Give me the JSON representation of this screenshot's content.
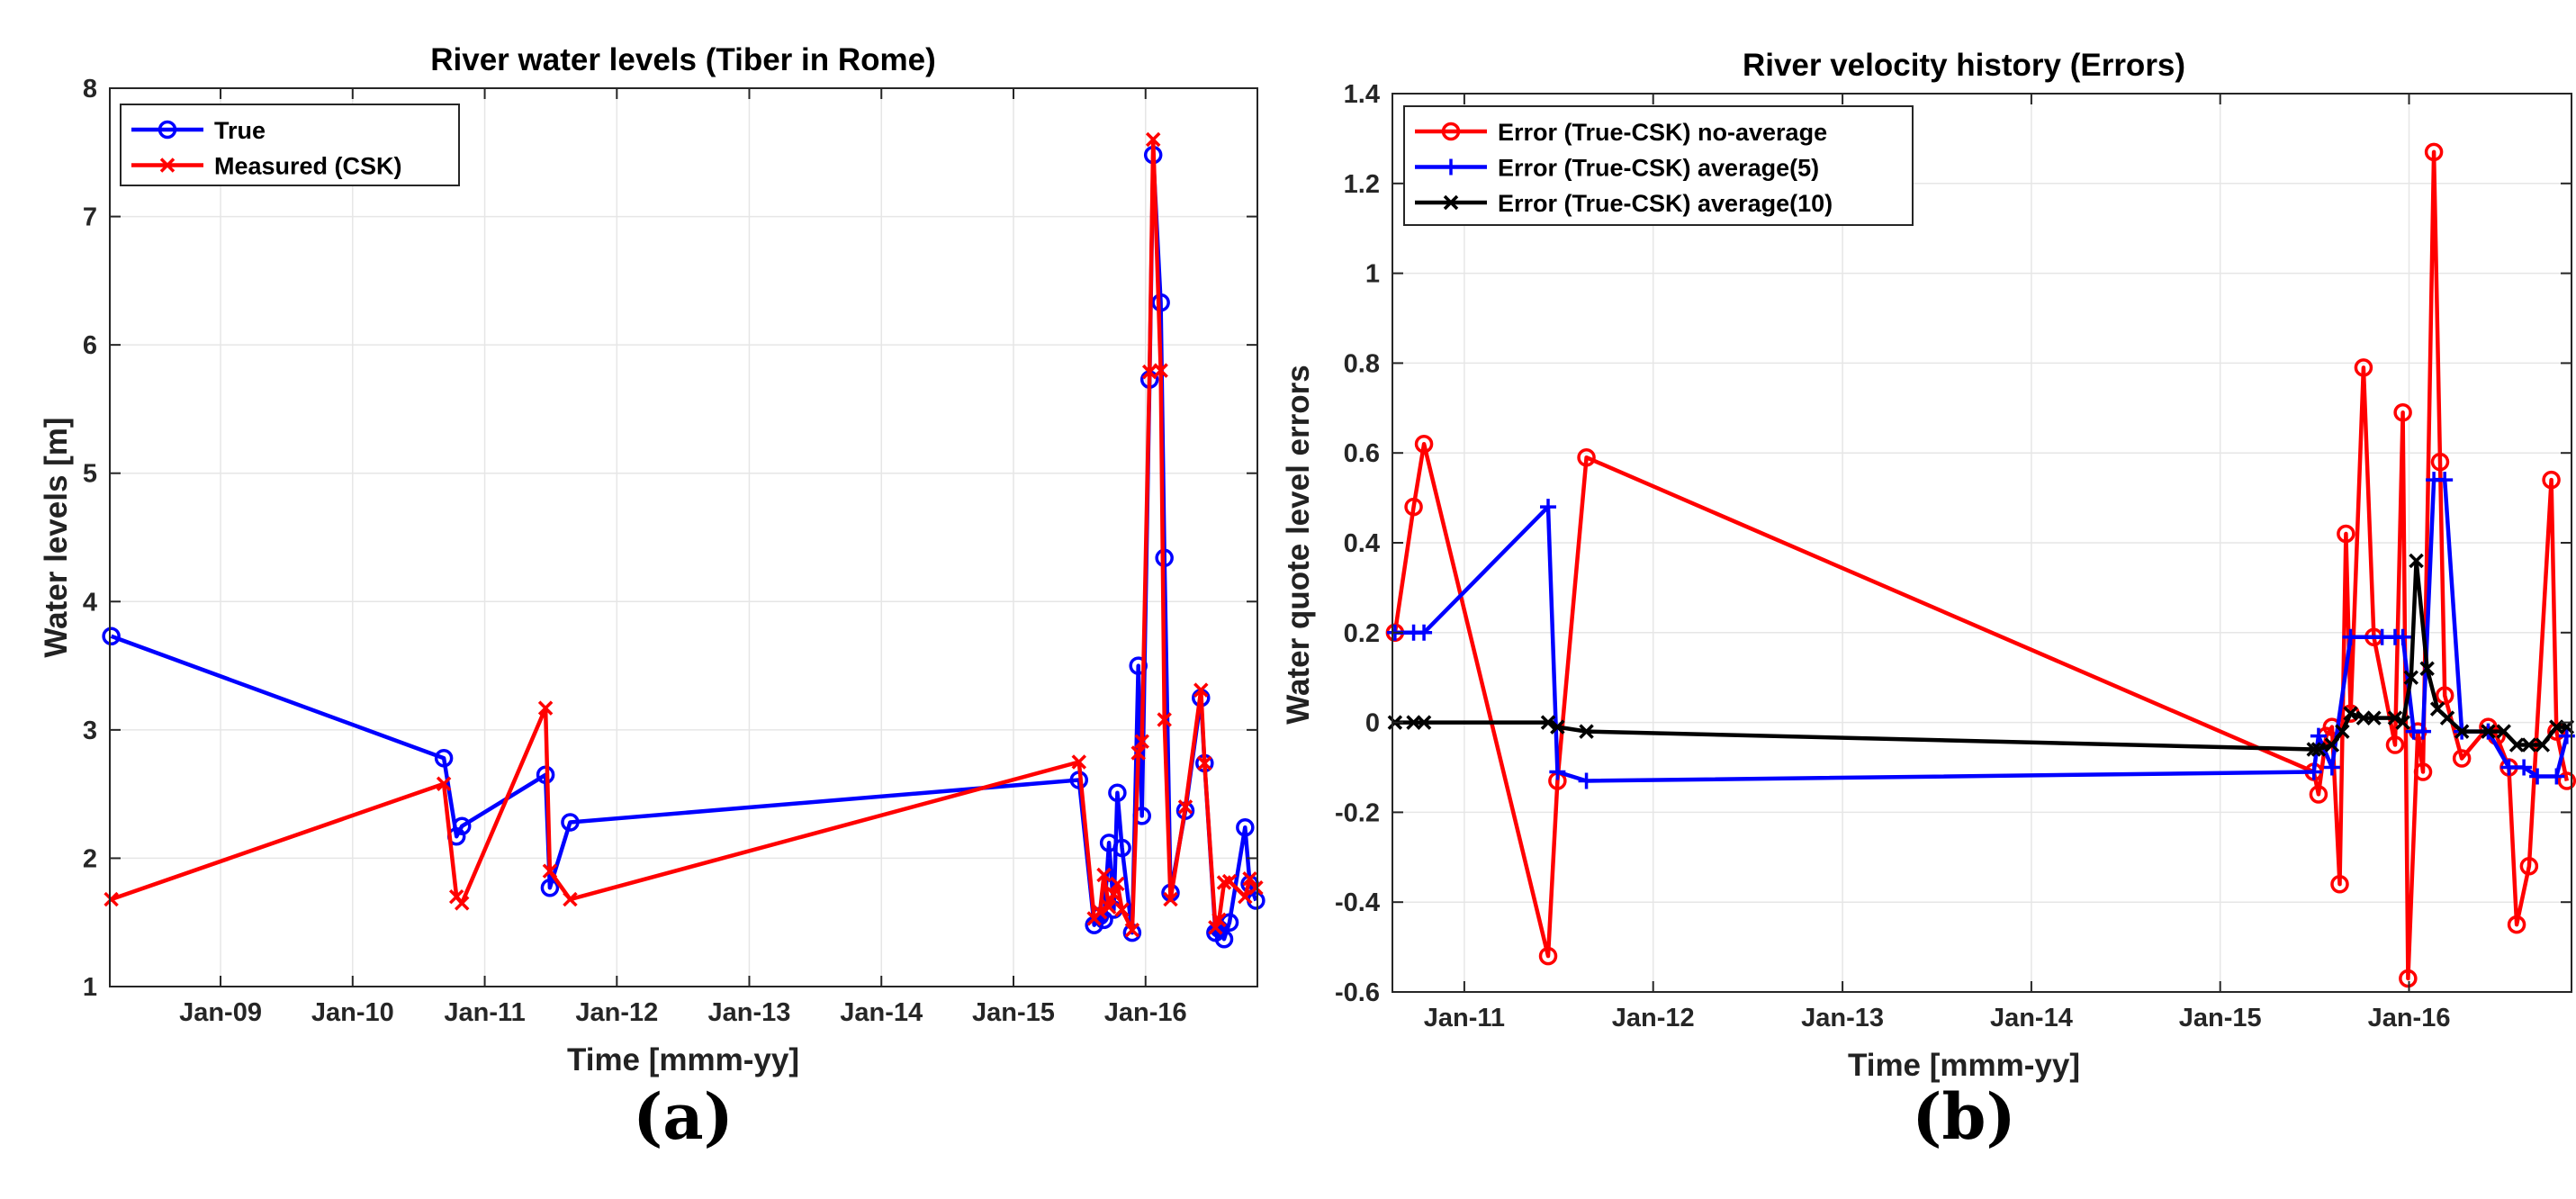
{
  "chart_data": [
    {
      "panel": "(a)",
      "type": "line",
      "title": "River water levels (Tiber in Rome)",
      "xlabel": "Time [mmm-yy]",
      "ylabel": "Water levels [m]",
      "x_ticks": [
        {
          "date": "2009-01-01",
          "label": "Jan-09"
        },
        {
          "date": "2010-01-01",
          "label": "Jan-10"
        },
        {
          "date": "2011-01-01",
          "label": "Jan-11"
        },
        {
          "date": "2012-01-01",
          "label": "Jan-12"
        },
        {
          "date": "2013-01-01",
          "label": "Jan-13"
        },
        {
          "date": "2014-01-01",
          "label": "Jan-14"
        },
        {
          "date": "2015-01-01",
          "label": "Jan-15"
        },
        {
          "date": "2016-01-01",
          "label": "Jan-16"
        }
      ],
      "xlim": [
        "2008-03-01",
        "2016-11-05"
      ],
      "ylim": [
        1,
        8
      ],
      "y_ticks": [
        1,
        2,
        3,
        4,
        5,
        6,
        7,
        8
      ],
      "grid": true,
      "legend_position": "top-left",
      "series": [
        {
          "name": "True",
          "color": "#0000ff",
          "marker": "circle",
          "x": [
            "2008-03-05",
            "2010-09-10",
            "2010-10-15",
            "2010-10-30",
            "2011-06-18",
            "2011-06-30",
            "2011-08-25",
            "2015-07-01",
            "2015-08-12",
            "2015-08-28",
            "2015-09-08",
            "2015-09-22",
            "2015-10-05",
            "2015-10-15",
            "2015-10-28",
            "2015-11-25",
            "2015-12-12",
            "2015-12-22",
            "2016-01-12",
            "2016-01-22",
            "2016-02-12",
            "2016-02-22",
            "2016-03-10",
            "2016-04-20",
            "2016-06-02",
            "2016-06-12",
            "2016-07-12",
            "2016-07-22",
            "2016-08-05",
            "2016-08-20",
            "2016-10-02",
            "2016-10-15",
            "2016-11-01"
          ],
          "y": [
            3.73,
            2.78,
            2.17,
            2.25,
            2.65,
            1.77,
            2.28,
            2.61,
            1.48,
            1.55,
            1.52,
            2.12,
            1.6,
            2.51,
            2.08,
            1.42,
            3.5,
            2.33,
            5.73,
            7.48,
            6.33,
            4.34,
            1.73,
            2.37,
            3.25,
            2.74,
            1.42,
            1.45,
            1.37,
            1.5,
            2.24,
            1.8,
            1.67
          ]
        },
        {
          "name": "Measured (CSK)",
          "color": "#ff0000",
          "marker": "x",
          "x": [
            "2008-03-05",
            "2010-09-10",
            "2010-10-15",
            "2010-10-30",
            "2011-06-18",
            "2011-06-30",
            "2011-08-25",
            "2015-07-01",
            "2015-08-12",
            "2015-08-28",
            "2015-09-08",
            "2015-09-22",
            "2015-10-05",
            "2015-10-15",
            "2015-10-28",
            "2015-11-25",
            "2015-12-12",
            "2015-12-22",
            "2016-01-12",
            "2016-01-22",
            "2016-02-12",
            "2016-02-22",
            "2016-03-10",
            "2016-04-20",
            "2016-06-02",
            "2016-06-12",
            "2016-07-12",
            "2016-07-22",
            "2016-08-05",
            "2016-08-20",
            "2016-10-02",
            "2016-10-15",
            "2016-11-01"
          ],
          "y": [
            1.68,
            2.58,
            1.7,
            1.65,
            3.17,
            1.9,
            1.68,
            2.75,
            1.53,
            1.58,
            1.87,
            1.62,
            1.72,
            1.8,
            1.6,
            1.44,
            2.82,
            2.91,
            5.79,
            7.6,
            5.8,
            3.08,
            1.68,
            2.4,
            3.31,
            2.74,
            1.46,
            1.52,
            1.81,
            1.82,
            1.7,
            1.84,
            1.77
          ]
        }
      ],
      "panel_label": "(a)"
    },
    {
      "panel": "(b)",
      "type": "line",
      "title": "River velocity history (Errors)",
      "xlabel": "Time [mmm-yy]",
      "ylabel": "Water quote level errors",
      "x_ticks": [
        {
          "date": "2011-01-01",
          "label": "Jan-11"
        },
        {
          "date": "2012-01-01",
          "label": "Jan-12"
        },
        {
          "date": "2013-01-01",
          "label": "Jan-13"
        },
        {
          "date": "2014-01-01",
          "label": "Jan-14"
        },
        {
          "date": "2015-01-01",
          "label": "Jan-15"
        },
        {
          "date": "2016-01-01",
          "label": "Jan-16"
        }
      ],
      "xlim": [
        "2010-08-15",
        "2016-11-10"
      ],
      "ylim": [
        -0.6,
        1.4
      ],
      "y_ticks": [
        -0.6,
        -0.4,
        -0.2,
        0,
        0.2,
        0.4,
        0.6,
        0.8,
        1,
        1.2,
        1.4
      ],
      "y_tick_labels": [
        "-0.6",
        "-0.4",
        "-0.2",
        "0",
        "0.2",
        "0.4",
        "0.6",
        "0.8",
        "1",
        "1.2",
        "1.4"
      ],
      "grid": true,
      "legend_position": "top-left",
      "series": [
        {
          "name": "Error (True-CSK) no-average",
          "color": "#ff0000",
          "marker": "circle",
          "x": [
            "2010-08-20",
            "2010-09-25",
            "2010-10-15",
            "2011-06-12",
            "2011-06-30",
            "2011-08-25",
            "2015-07-01",
            "2015-07-10",
            "2015-07-25",
            "2015-08-05",
            "2015-08-20",
            "2015-09-01",
            "2015-09-10",
            "2015-10-05",
            "2015-10-25",
            "2015-12-05",
            "2015-12-20",
            "2015-12-30",
            "2016-01-18",
            "2016-01-28",
            "2016-02-18",
            "2016-03-01",
            "2016-03-10",
            "2016-04-12",
            "2016-06-02",
            "2016-06-18",
            "2016-07-12",
            "2016-07-27",
            "2016-08-20",
            "2016-10-02",
            "2016-10-12",
            "2016-11-01"
          ],
          "y": [
            0.2,
            0.48,
            0.62,
            -0.52,
            -0.13,
            0.59,
            -0.11,
            -0.16,
            -0.03,
            -0.01,
            -0.36,
            0.42,
            0.02,
            0.79,
            0.19,
            -0.05,
            0.69,
            -0.57,
            -0.02,
            -0.11,
            1.27,
            0.58,
            0.06,
            -0.08,
            -0.01,
            -0.03,
            -0.1,
            -0.45,
            -0.32,
            0.54,
            -0.02,
            -0.13
          ]
        },
        {
          "name": "Error (True-CSK) average(5)",
          "color": "#0000ff",
          "marker": "plus",
          "x": [
            "2010-08-20",
            "2010-09-25",
            "2010-10-15",
            "2011-06-12",
            "2011-06-30",
            "2011-08-25",
            "2015-07-01",
            "2015-07-10",
            "2015-08-05",
            "2015-09-10",
            "2015-11-10",
            "2015-12-05",
            "2015-12-20",
            "2016-01-10",
            "2016-01-28",
            "2016-02-18",
            "2016-03-10",
            "2016-04-12",
            "2016-06-02",
            "2016-07-12",
            "2016-08-10",
            "2016-09-05",
            "2016-10-12",
            "2016-11-01"
          ],
          "y": [
            0.2,
            0.2,
            0.2,
            0.48,
            -0.11,
            -0.13,
            -0.11,
            -0.03,
            -0.1,
            0.19,
            0.19,
            0.19,
            0.19,
            -0.02,
            -0.02,
            0.54,
            0.54,
            -0.02,
            -0.02,
            -0.1,
            -0.1,
            -0.12,
            -0.12,
            -0.03
          ]
        },
        {
          "name": "Error (True-CSK) average(10)",
          "color": "#000000",
          "marker": "x",
          "x": [
            "2010-08-20",
            "2010-09-25",
            "2010-10-15",
            "2011-06-12",
            "2011-06-30",
            "2011-08-25",
            "2015-07-01",
            "2015-07-10",
            "2015-08-05",
            "2015-08-25",
            "2015-09-10",
            "2015-10-05",
            "2015-10-25",
            "2015-12-05",
            "2015-12-20",
            "2016-01-05",
            "2016-01-15",
            "2016-02-05",
            "2016-02-25",
            "2016-03-15",
            "2016-04-12",
            "2016-06-02",
            "2016-07-02",
            "2016-07-27",
            "2016-08-20",
            "2016-09-15",
            "2016-10-12",
            "2016-11-01"
          ],
          "y": [
            0.0,
            0.0,
            0.0,
            0.0,
            -0.01,
            -0.02,
            -0.06,
            -0.06,
            -0.05,
            -0.02,
            0.02,
            0.01,
            0.01,
            0.01,
            0.0,
            0.1,
            0.36,
            0.12,
            0.03,
            0.01,
            -0.02,
            -0.02,
            -0.02,
            -0.05,
            -0.05,
            -0.05,
            -0.01,
            -0.01
          ]
        }
      ],
      "panel_label": "(b)"
    }
  ]
}
